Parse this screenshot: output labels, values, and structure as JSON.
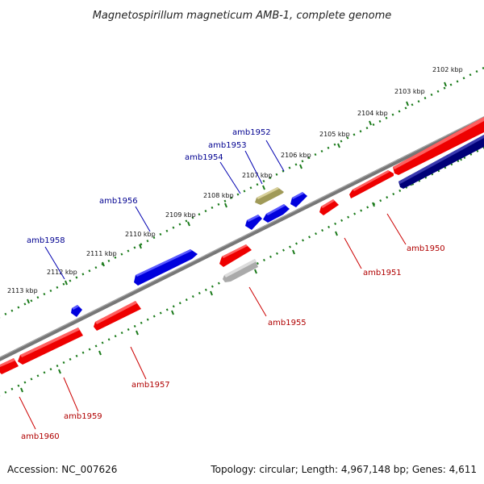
{
  "title": "Magnetospirillum magneticum AMB-1, complete genome",
  "footer": {
    "accession": "Accession: NC_007626",
    "topology": "Topology: circular; Length: 4,967,148 bp; Genes: 4,611"
  },
  "colors": {
    "forward_strand": "#ff0000",
    "reverse_strand": "#0000ff",
    "highlight_forward": "#000080",
    "pseudogene": "#c0c0c0",
    "highlight_reverse": "#b8b070",
    "forward_label": "#b00000",
    "reverse_label": "#000090",
    "ruler": "#1a7a1a"
  },
  "scale_labels": [
    "2102 kbp",
    "2103 kbp",
    "2104 kbp",
    "2105 kbp",
    "2106 kbp",
    "2107 kbp",
    "2108 kbp",
    "2109 kbp",
    "2110 kbp",
    "2111 kbp",
    "2112 kbp",
    "2113 kbp"
  ],
  "reverse_strand_genes": [
    "amb1952",
    "amb1953",
    "amb1954",
    "amb1956",
    "amb1958"
  ],
  "forward_strand_genes": [
    "amb1950",
    "amb1951",
    "amb1955",
    "amb1957",
    "amb1959",
    "amb1960"
  ]
}
